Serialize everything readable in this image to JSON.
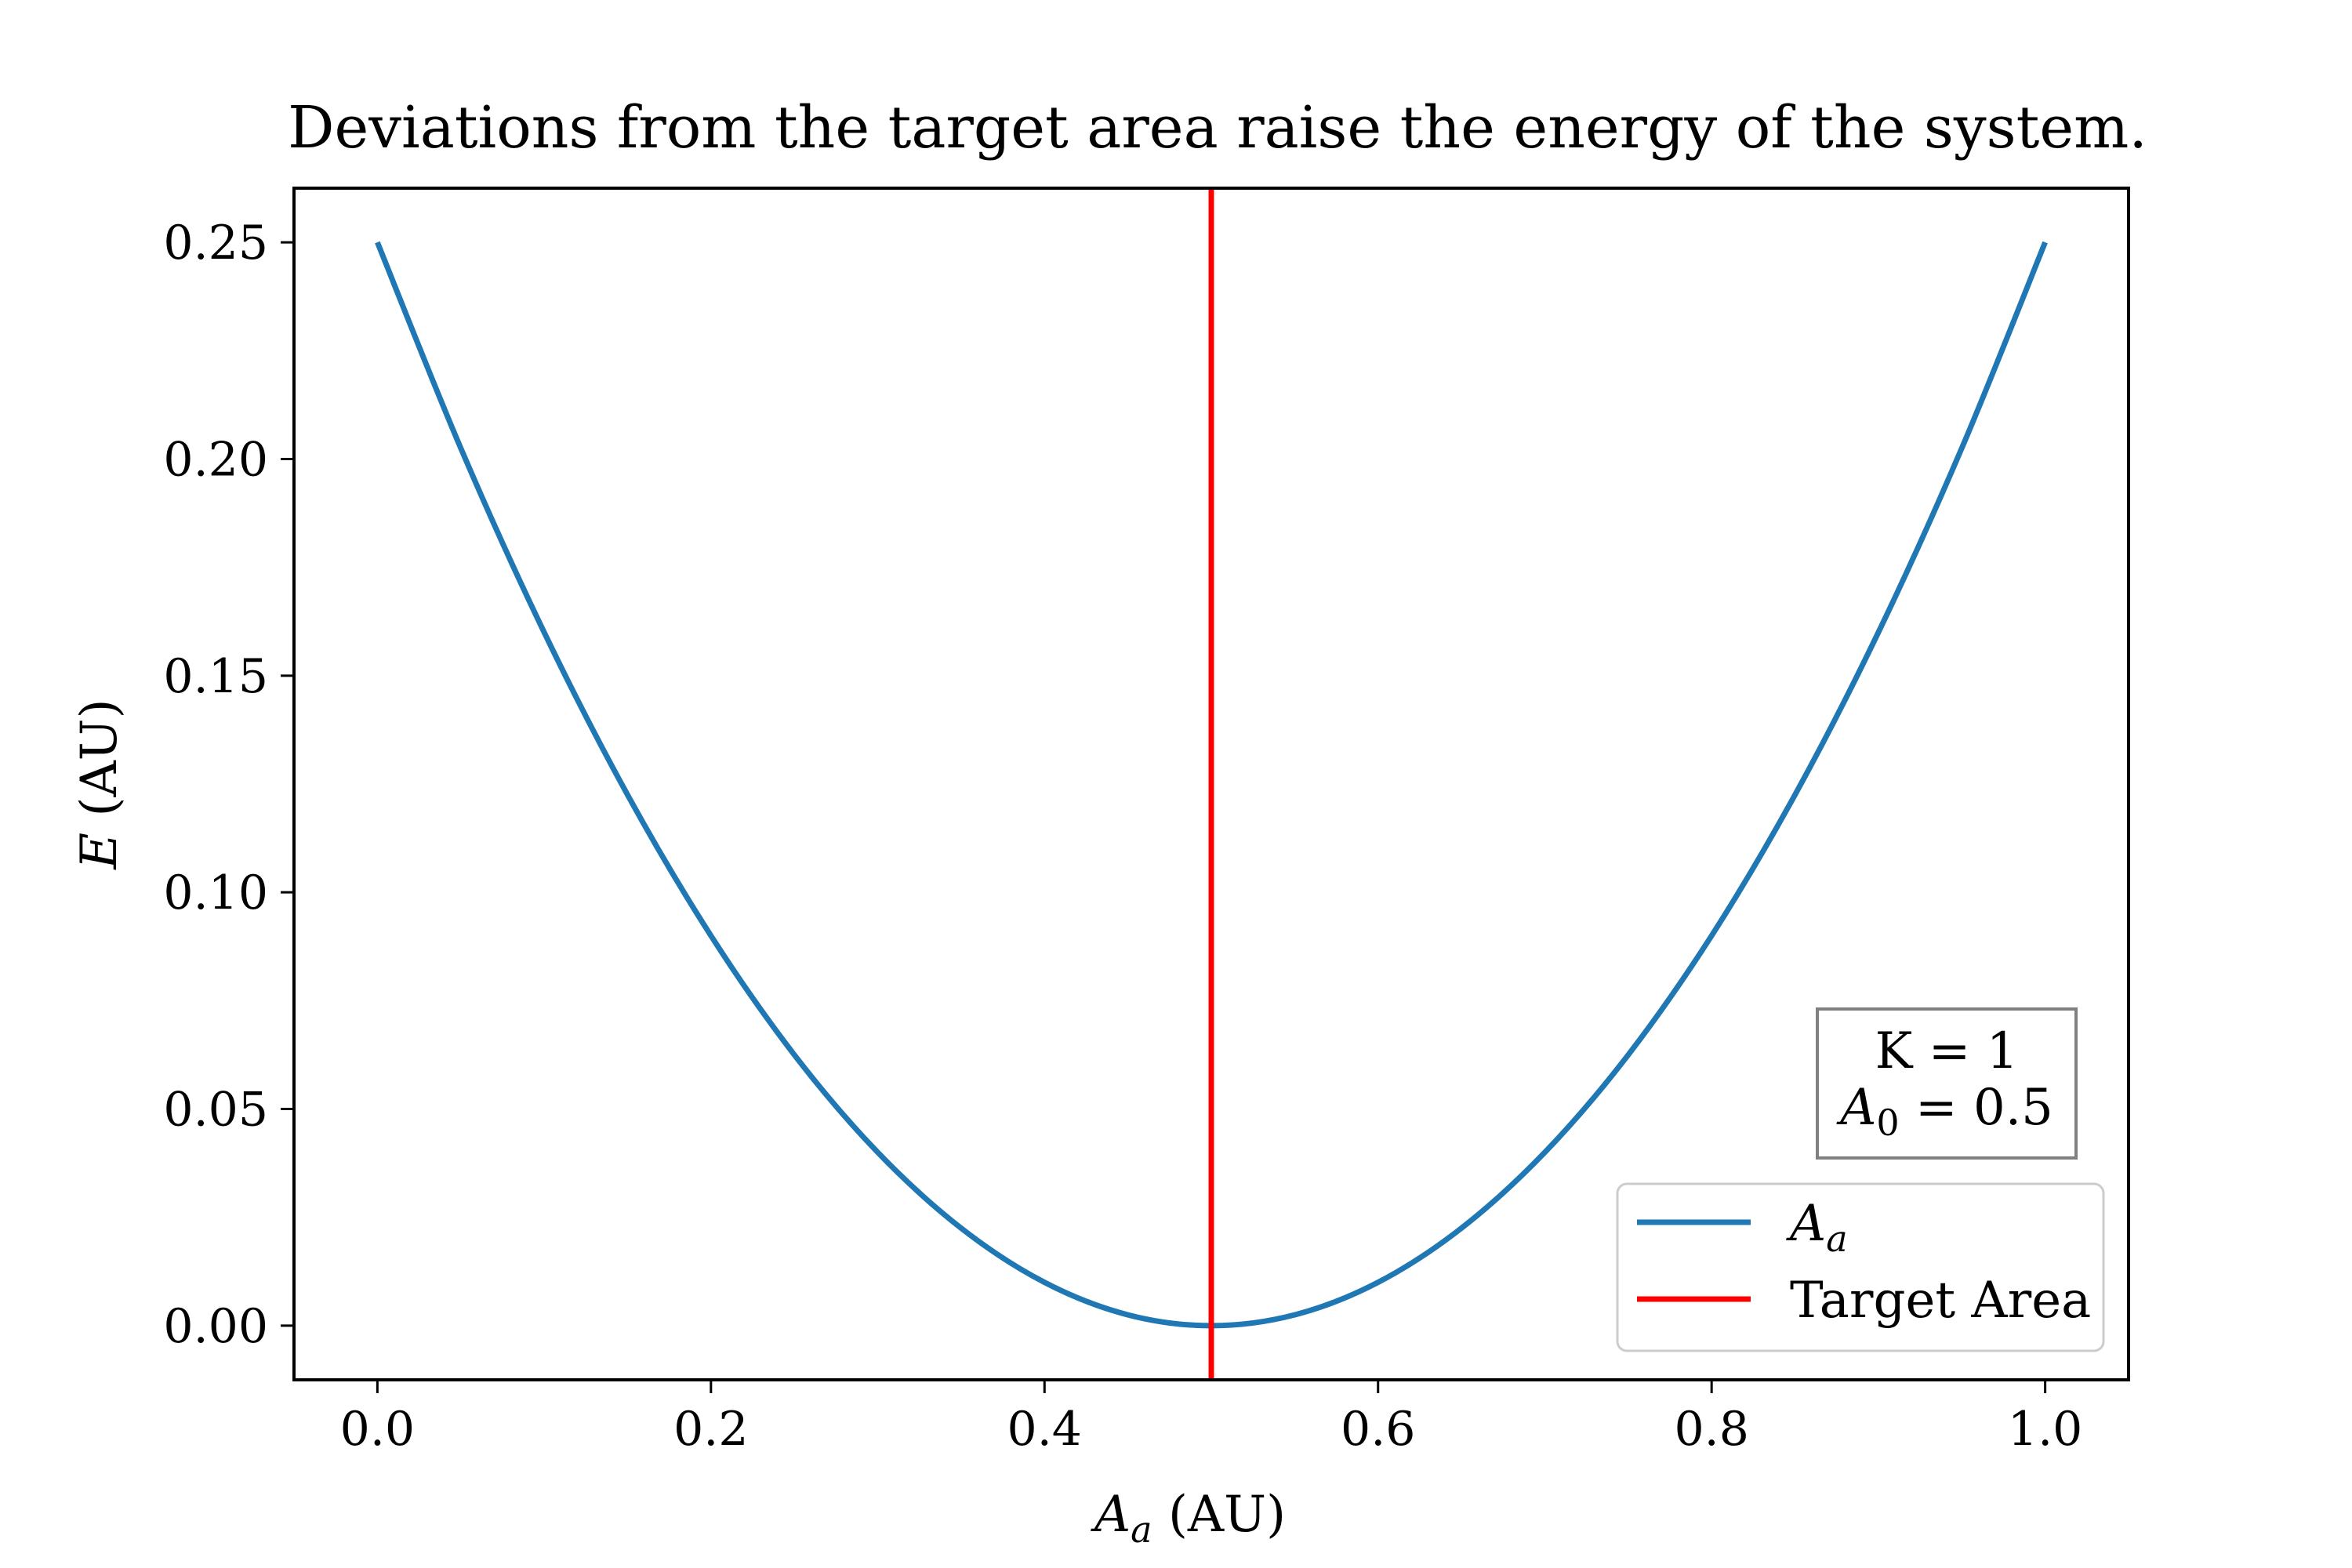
{
  "chart_data": {
    "type": "line",
    "title": "Deviations from the target area raise the energy of the system.",
    "xlabel": {
      "main": "A",
      "sub": "a",
      "rest": " (AU)"
    },
    "ylabel": {
      "main": "E",
      "rest": " (AU)"
    },
    "xlim": [
      -0.05,
      1.05
    ],
    "ylim": [
      -0.0125,
      0.2625
    ],
    "xticks": [
      0.0,
      0.2,
      0.4,
      0.6,
      0.8,
      1.0
    ],
    "xtick_labels": [
      "0.0",
      "0.2",
      "0.4",
      "0.6",
      "0.8",
      "1.0"
    ],
    "yticks": [
      0.0,
      0.05,
      0.1,
      0.15,
      0.2,
      0.25
    ],
    "ytick_labels": [
      "0.00",
      "0.05",
      "0.10",
      "0.15",
      "0.20",
      "0.25"
    ],
    "grid": false,
    "series": [
      {
        "name": {
          "main": "A",
          "sub": "a"
        },
        "color": "#1f77b4",
        "x": [
          0.0,
          0.05,
          0.1,
          0.15,
          0.2,
          0.25,
          0.3,
          0.35,
          0.4,
          0.45,
          0.5,
          0.55,
          0.6,
          0.65,
          0.7,
          0.75,
          0.8,
          0.85,
          0.9,
          0.95,
          1.0
        ],
        "y": [
          0.25,
          0.2025,
          0.16,
          0.1225,
          0.09,
          0.0625,
          0.04,
          0.0225,
          0.01,
          0.0025,
          0.0,
          0.0025,
          0.01,
          0.0225,
          0.04,
          0.0625,
          0.09,
          0.1225,
          0.16,
          0.2025,
          0.25
        ]
      }
    ],
    "vlines": [
      {
        "name": "Target Area",
        "x": 0.5,
        "color": "#ff0000"
      }
    ],
    "legend": {
      "placement": "lower-right"
    },
    "annotation": {
      "line1": "K = 1",
      "line2": {
        "main": "A",
        "sub": "0",
        "rest": " = 0.5"
      },
      "placement": "right"
    }
  }
}
